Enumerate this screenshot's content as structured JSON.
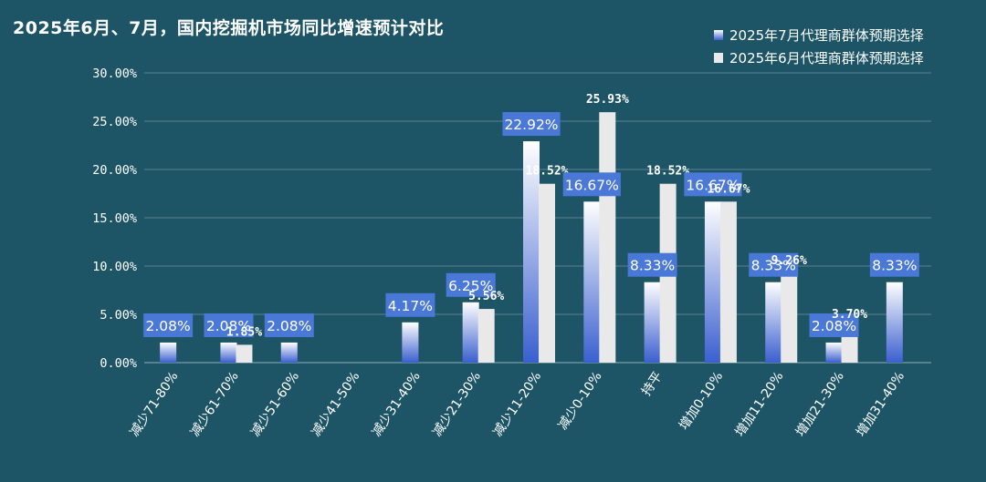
{
  "chart_data": {
    "type": "bar",
    "title": "2025年6月、7月，国内挖掘机市场同比增速预计对比",
    "categories": [
      "减少71-80%",
      "减少61-70%",
      "减少51-60%",
      "减少41-50%",
      "减少31-40%",
      "减少21-30%",
      "减少11-20%",
      "减少0-10%",
      "持平",
      "增加0-10%",
      "增加11-20%",
      "增加21-30%",
      "增加31-40%"
    ],
    "series": [
      {
        "name": "2025年7月代理商群体预期选择",
        "values": [
          2.08,
          2.08,
          2.08,
          0,
          4.17,
          6.25,
          22.92,
          16.67,
          8.33,
          16.67,
          8.33,
          2.08,
          8.33
        ],
        "labels": [
          "2.08%",
          "2.08%",
          "2.08%",
          "",
          "4.17%",
          "6.25%",
          "22.92%",
          "16.67%",
          "8.33%",
          "16.67%",
          "8.33%",
          "2.08%",
          "8.33%"
        ]
      },
      {
        "name": "2025年6月代理商群体预期选择",
        "values": [
          0,
          1.85,
          0,
          0,
          0,
          5.56,
          18.52,
          25.93,
          18.52,
          16.67,
          9.26,
          3.7,
          0
        ],
        "labels": [
          "",
          "1.85%",
          "",
          "",
          "",
          "5.56%",
          "18.52%",
          "25.93%",
          "18.52%",
          "16.67%",
          "9.26%",
          "3.70%",
          ""
        ]
      }
    ],
    "yticks": [
      "0.00%",
      "5.00%",
      "10.00%",
      "15.00%",
      "20.00%",
      "25.00%",
      "30.00%"
    ],
    "ylim": [
      0,
      30
    ],
    "xlabel": "",
    "ylabel": "",
    "grid": true,
    "legend_position": "top-right",
    "colors": {
      "background": "#1d5566",
      "jul_top": "#ffffff",
      "jul_bottom": "#3a5fcf",
      "jun": "#e9e9e9",
      "label_box": "#4a78d6",
      "grid": "#5b8391"
    }
  }
}
